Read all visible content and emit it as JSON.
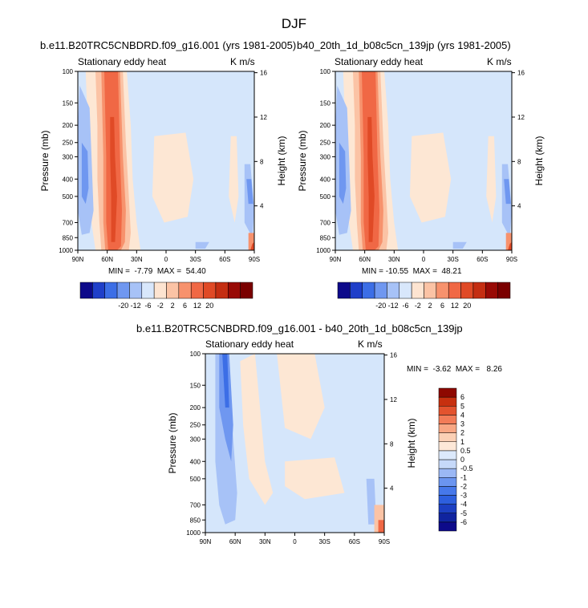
{
  "figure": {
    "title": "DJF"
  },
  "panels": [
    {
      "title": "b.e11.B20TRC5CNBDRD.f09_g16.001 (yrs 1981-2005)",
      "left_label": "Stationary eddy heat",
      "units": "K m/s",
      "ylabel": "Pressure (mb)",
      "ylabel_right": "Height (km)",
      "stats": "MIN =  -7.79  MAX =  54.40"
    },
    {
      "title": "b40_20th_1d_b08c5cn_139jp (yrs 1981-2005)",
      "left_label": "Stationary eddy heat",
      "units": "K m/s",
      "ylabel": "Pressure (mb)",
      "ylabel_right": "Height (km)",
      "stats": "MIN = -10.55  MAX =  48.21"
    },
    {
      "title": "b.e11.B20TRC5CNBDRD.f09_g16.001 - b40_20th_1d_b08c5cn_139jp",
      "left_label": "Stationary eddy heat",
      "units": "K m/s",
      "ylabel": "Pressure (mb)",
      "ylabel_right": "Height (km)",
      "stats": "MIN =  -3.62  MAX =   8.26"
    }
  ],
  "chart_data": [
    {
      "type": "heatmap",
      "title": "b.e11.B20TRC5CNBDRD.f09_g16.001 (yrs 1981-2005)",
      "left_label": "Stationary eddy heat",
      "units": "K m/s",
      "ylabel": "Pressure (mb)",
      "ylabel_right": "Height (km)",
      "x_ticks": [
        "90N",
        "60N",
        "30N",
        "0",
        "30S",
        "60S",
        "90S"
      ],
      "x_range": [
        90,
        -90
      ],
      "y_ticks": [
        100,
        150,
        200,
        250,
        300,
        400,
        500,
        700,
        850,
        1000
      ],
      "y_range": [
        100,
        1000
      ],
      "y_scale": "log",
      "y_ticks_right": [
        4,
        8,
        12,
        16
      ],
      "contour_levels": [
        -20,
        -12,
        -6,
        -2,
        2,
        6,
        12,
        20
      ],
      "min": -7.79,
      "max": 54.4
    },
    {
      "type": "heatmap",
      "title": "b40_20th_1d_b08c5cn_139jp (yrs 1981-2005)",
      "left_label": "Stationary eddy heat",
      "units": "K m/s",
      "ylabel": "Pressure (mb)",
      "ylabel_right": "Height (km)",
      "x_ticks": [
        "90N",
        "60N",
        "30N",
        "0",
        "30S",
        "60S",
        "90S"
      ],
      "x_range": [
        90,
        -90
      ],
      "y_ticks": [
        100,
        150,
        200,
        250,
        300,
        400,
        500,
        700,
        850,
        1000
      ],
      "y_range": [
        100,
        1000
      ],
      "y_scale": "log",
      "y_ticks_right": [
        4,
        8,
        12,
        16
      ],
      "contour_levels": [
        -20,
        -12,
        -6,
        -2,
        2,
        6,
        12,
        20
      ],
      "min": -10.55,
      "max": 48.21
    },
    {
      "type": "heatmap",
      "title": "b.e11.B20TRC5CNBDRD.f09_g16.001 - b40_20th_1d_b08c5cn_139jp",
      "left_label": "Stationary eddy heat",
      "units": "K m/s",
      "ylabel": "Pressure (mb)",
      "ylabel_right": "Height (km)",
      "x_ticks": [
        "90N",
        "60N",
        "30N",
        "0",
        "30S",
        "60S",
        "90S"
      ],
      "x_range": [
        90,
        -90
      ],
      "y_ticks": [
        100,
        150,
        200,
        250,
        300,
        400,
        500,
        700,
        850,
        1000
      ],
      "y_range": [
        100,
        1000
      ],
      "y_scale": "log",
      "y_ticks_right": [
        4,
        8,
        12,
        16
      ],
      "contour_levels": [
        -6,
        -5,
        -4,
        -3,
        -2,
        -1,
        -0.5,
        0,
        0.5,
        1,
        2,
        3,
        4,
        5,
        6
      ],
      "min": -3.62,
      "max": 8.26
    }
  ],
  "colorbars": [
    {
      "labels": [
        "-20",
        "-12",
        "-6",
        "-2",
        "2",
        "6",
        "12",
        "20"
      ],
      "colors": [
        "#0d0a8a",
        "#1f3fc9",
        "#3c6ee6",
        "#6f97f0",
        "#a7c2f7",
        "#d8e7fb",
        "#fde4d1",
        "#fbc3a5",
        "#f7926d",
        "#f06845",
        "#e04a26",
        "#c42e12",
        "#980a05",
        "#7a0000"
      ]
    },
    {
      "labels": [
        "-6",
        "-5",
        "-4",
        "-3",
        "-2",
        "-1",
        "-0.5",
        "0",
        "0.5",
        "1",
        "2",
        "3",
        "4",
        "5",
        "6"
      ],
      "colors": [
        "#0d0a8a",
        "#10249f",
        "#1c3fc2",
        "#2d5fde",
        "#4678ea",
        "#6b95f0",
        "#9bb8f5",
        "#c6d9f9",
        "#dce9fb",
        "#fde8d8",
        "#fbd0b5",
        "#f8a784",
        "#f27c58",
        "#e3532e",
        "#c7300f",
        "#8e0800"
      ]
    }
  ],
  "field_colors": {
    "bg": "#d5e6fb",
    "pos1": "#fde7d4",
    "pos2": "#fbc3a5",
    "pos3": "#f7926d",
    "pos4": "#f06845",
    "pos5": "#e04a26",
    "neg1": "#a7c2f7",
    "neg2": "#6f97f0",
    "neg3": "#3c6ee6"
  }
}
